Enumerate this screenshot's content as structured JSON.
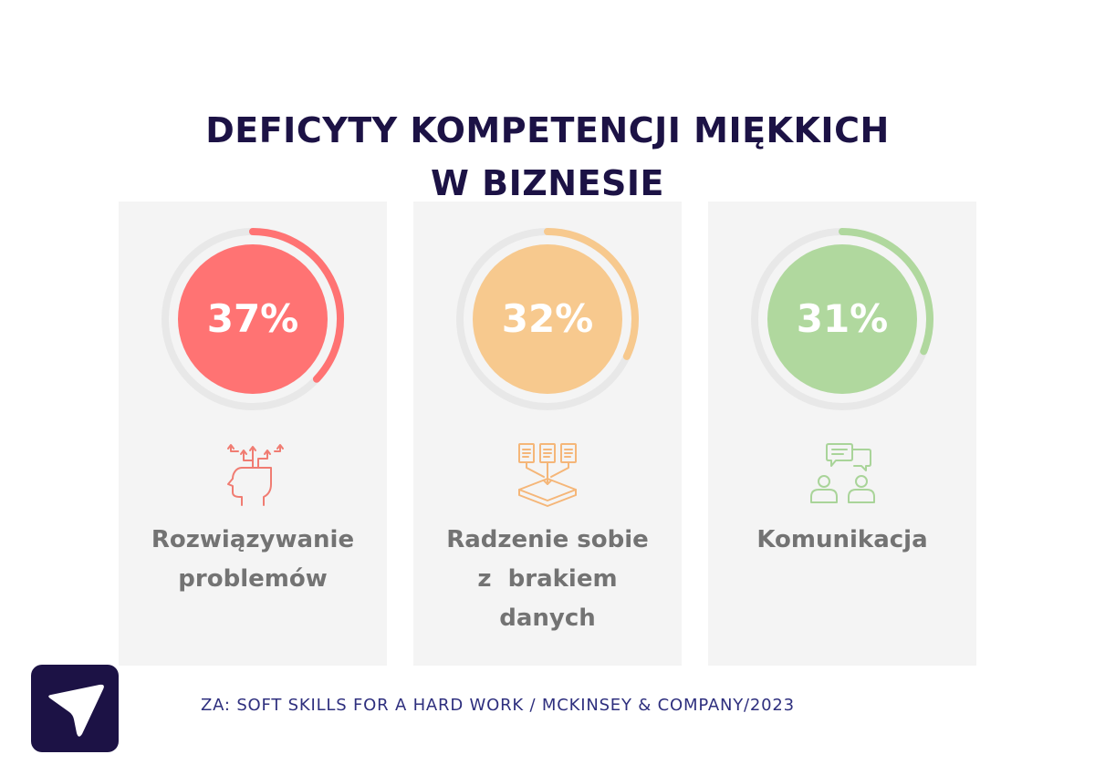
{
  "title": {
    "line1": "DEFICYTY KOMPETENCJI MIĘKKICH",
    "line2": "W BIZNESIE"
  },
  "chart_data": {
    "type": "donut",
    "title": "DEFICYTY KOMPETENCJI MIĘKKICH W BIZNESIE",
    "unit": "%",
    "categories": [
      "Rozwiązywanie problemów",
      "Radzenie sobie z brakiem danych",
      "Komunikacja"
    ],
    "values": [
      37,
      32,
      31
    ],
    "items": [
      {
        "value": 37,
        "value_label": "37%",
        "label_lines": [
          "Rozwiązywanie",
          "problemów"
        ],
        "color": "#ff7373",
        "icon": "head-ideas-icon"
      },
      {
        "value": 32,
        "value_label": "32%",
        "label_lines": [
          "Radzenie sobie",
          "z  brakiem",
          "danych"
        ],
        "color": "#f7c98e",
        "icon": "documents-inbox-icon"
      },
      {
        "value": 31,
        "value_label": "31%",
        "label_lines": [
          "Komunikacja"
        ],
        "color": "#b0d89e",
        "icon": "people-chat-icon"
      }
    ],
    "track_color": "#e8e8e8",
    "ylim": [
      0,
      100
    ]
  },
  "footer": {
    "source": "ZA: SOFT SKILLS FOR A HARD WORK / MCKINSEY & COMPANY/2023"
  },
  "colors": {
    "title": "#1c1245",
    "label": "#737373",
    "source": "#2e2f7e",
    "card": "#f4f4f4",
    "logo_bg": "#1c1245"
  },
  "logo": {
    "icon": "plane-logo-icon"
  }
}
